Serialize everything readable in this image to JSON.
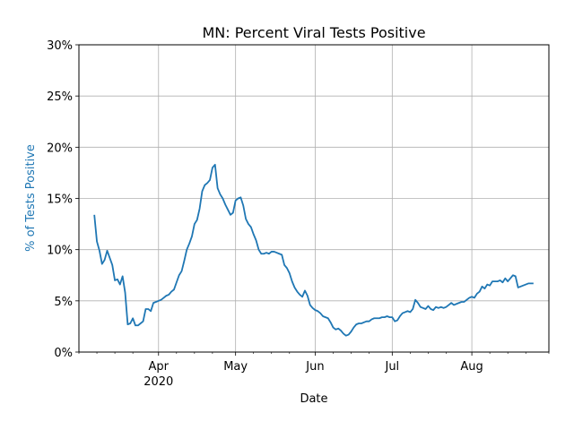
{
  "chart_data": {
    "type": "line",
    "title": "MN: Percent Viral Tests Positive",
    "xlabel": "Date",
    "ylabel": "% of Tests Positive",
    "ylim": [
      0,
      30
    ],
    "xlim": [
      "2020-03-01",
      "2020-08-31"
    ],
    "grid": true,
    "colors": {
      "line": "#1f77b4",
      "ylabel": "#1f77b4",
      "grid": "#b0b0b0"
    },
    "x_major_ticks": [
      {
        "date": "2020-04-01",
        "label": "Apr",
        "sublabel": "2020"
      },
      {
        "date": "2020-05-01",
        "label": "May",
        "sublabel": ""
      },
      {
        "date": "2020-06-01",
        "label": "Jun",
        "sublabel": ""
      },
      {
        "date": "2020-07-01",
        "label": "Jul",
        "sublabel": ""
      },
      {
        "date": "2020-08-01",
        "label": "Aug",
        "sublabel": ""
      }
    ],
    "x_minor_ticks": [
      "2020-03-01",
      "2020-03-08",
      "2020-03-15",
      "2020-03-22",
      "2020-04-08",
      "2020-04-15",
      "2020-04-22",
      "2020-05-08",
      "2020-05-15",
      "2020-05-22",
      "2020-06-08",
      "2020-06-15",
      "2020-06-22",
      "2020-07-08",
      "2020-07-15",
      "2020-07-22",
      "2020-08-08",
      "2020-08-15",
      "2020-08-22",
      "2020-08-31"
    ],
    "y_ticks": [
      {
        "value": 0,
        "label": "0%"
      },
      {
        "value": 5,
        "label": "5%"
      },
      {
        "value": 10,
        "label": "10%"
      },
      {
        "value": 15,
        "label": "15%"
      },
      {
        "value": 20,
        "label": "20%"
      },
      {
        "value": 25,
        "label": "25%"
      },
      {
        "value": 30,
        "label": "30%"
      }
    ],
    "series": [
      {
        "points": [
          [
            "2020-03-07",
            13.4
          ],
          [
            "2020-03-08",
            10.8
          ],
          [
            "2020-03-09",
            9.9
          ],
          [
            "2020-03-10",
            8.6
          ],
          [
            "2020-03-11",
            9.0
          ],
          [
            "2020-03-12",
            9.9
          ],
          [
            "2020-03-13",
            9.2
          ],
          [
            "2020-03-14",
            8.5
          ],
          [
            "2020-03-15",
            7.0
          ],
          [
            "2020-03-16",
            7.1
          ],
          [
            "2020-03-17",
            6.6
          ],
          [
            "2020-03-18",
            7.4
          ],
          [
            "2020-03-19",
            5.8
          ],
          [
            "2020-03-20",
            2.7
          ],
          [
            "2020-03-21",
            2.8
          ],
          [
            "2020-03-22",
            3.3
          ],
          [
            "2020-03-23",
            2.6
          ],
          [
            "2020-03-24",
            2.6
          ],
          [
            "2020-03-25",
            2.8
          ],
          [
            "2020-03-26",
            3.0
          ],
          [
            "2020-03-27",
            4.2
          ],
          [
            "2020-03-28",
            4.2
          ],
          [
            "2020-03-29",
            4.0
          ],
          [
            "2020-03-30",
            4.8
          ],
          [
            "2020-03-31",
            4.9
          ],
          [
            "2020-04-01",
            5.0
          ],
          [
            "2020-04-02",
            5.1
          ],
          [
            "2020-04-03",
            5.3
          ],
          [
            "2020-04-04",
            5.5
          ],
          [
            "2020-04-05",
            5.6
          ],
          [
            "2020-04-06",
            5.9
          ],
          [
            "2020-04-07",
            6.1
          ],
          [
            "2020-04-08",
            6.8
          ],
          [
            "2020-04-09",
            7.5
          ],
          [
            "2020-04-10",
            7.9
          ],
          [
            "2020-04-11",
            8.9
          ],
          [
            "2020-04-12",
            10.0
          ],
          [
            "2020-04-13",
            10.6
          ],
          [
            "2020-04-14",
            11.3
          ],
          [
            "2020-04-15",
            12.5
          ],
          [
            "2020-04-16",
            12.9
          ],
          [
            "2020-04-17",
            14.0
          ],
          [
            "2020-04-18",
            15.7
          ],
          [
            "2020-04-19",
            16.3
          ],
          [
            "2020-04-20",
            16.5
          ],
          [
            "2020-04-21",
            16.8
          ],
          [
            "2020-04-22",
            18.0
          ],
          [
            "2020-04-23",
            18.3
          ],
          [
            "2020-04-24",
            16.0
          ],
          [
            "2020-04-25",
            15.4
          ],
          [
            "2020-04-26",
            15.0
          ],
          [
            "2020-04-27",
            14.4
          ],
          [
            "2020-04-28",
            13.9
          ],
          [
            "2020-04-29",
            13.4
          ],
          [
            "2020-04-30",
            13.6
          ],
          [
            "2020-05-01",
            14.8
          ],
          [
            "2020-05-02",
            15.0
          ],
          [
            "2020-05-03",
            15.1
          ],
          [
            "2020-05-04",
            14.3
          ],
          [
            "2020-05-05",
            13.0
          ],
          [
            "2020-05-06",
            12.5
          ],
          [
            "2020-05-07",
            12.2
          ],
          [
            "2020-05-08",
            11.5
          ],
          [
            "2020-05-09",
            10.9
          ],
          [
            "2020-05-10",
            10.0
          ],
          [
            "2020-05-11",
            9.6
          ],
          [
            "2020-05-12",
            9.6
          ],
          [
            "2020-05-13",
            9.7
          ],
          [
            "2020-05-14",
            9.6
          ],
          [
            "2020-05-15",
            9.8
          ],
          [
            "2020-05-16",
            9.8
          ],
          [
            "2020-05-17",
            9.7
          ],
          [
            "2020-05-18",
            9.6
          ],
          [
            "2020-05-19",
            9.5
          ],
          [
            "2020-05-20",
            8.5
          ],
          [
            "2020-05-21",
            8.2
          ],
          [
            "2020-05-22",
            7.7
          ],
          [
            "2020-05-23",
            6.9
          ],
          [
            "2020-05-24",
            6.3
          ],
          [
            "2020-05-25",
            5.9
          ],
          [
            "2020-05-26",
            5.6
          ],
          [
            "2020-05-27",
            5.4
          ],
          [
            "2020-05-28",
            6.0
          ],
          [
            "2020-05-29",
            5.5
          ],
          [
            "2020-05-30",
            4.6
          ],
          [
            "2020-05-31",
            4.3
          ],
          [
            "2020-06-01",
            4.1
          ],
          [
            "2020-06-02",
            4.0
          ],
          [
            "2020-06-03",
            3.8
          ],
          [
            "2020-06-04",
            3.5
          ],
          [
            "2020-06-05",
            3.4
          ],
          [
            "2020-06-06",
            3.3
          ],
          [
            "2020-06-07",
            2.9
          ],
          [
            "2020-06-08",
            2.4
          ],
          [
            "2020-06-09",
            2.2
          ],
          [
            "2020-06-10",
            2.3
          ],
          [
            "2020-06-11",
            2.1
          ],
          [
            "2020-06-12",
            1.8
          ],
          [
            "2020-06-13",
            1.6
          ],
          [
            "2020-06-14",
            1.7
          ],
          [
            "2020-06-15",
            2.0
          ],
          [
            "2020-06-16",
            2.4
          ],
          [
            "2020-06-17",
            2.7
          ],
          [
            "2020-06-18",
            2.8
          ],
          [
            "2020-06-19",
            2.8
          ],
          [
            "2020-06-20",
            2.9
          ],
          [
            "2020-06-21",
            3.0
          ],
          [
            "2020-06-22",
            3.0
          ],
          [
            "2020-06-23",
            3.2
          ],
          [
            "2020-06-24",
            3.3
          ],
          [
            "2020-06-25",
            3.3
          ],
          [
            "2020-06-26",
            3.3
          ],
          [
            "2020-06-27",
            3.4
          ],
          [
            "2020-06-28",
            3.4
          ],
          [
            "2020-06-29",
            3.5
          ],
          [
            "2020-06-30",
            3.4
          ],
          [
            "2020-07-01",
            3.4
          ],
          [
            "2020-07-02",
            3.0
          ],
          [
            "2020-07-03",
            3.1
          ],
          [
            "2020-07-04",
            3.5
          ],
          [
            "2020-07-05",
            3.8
          ],
          [
            "2020-07-06",
            3.9
          ],
          [
            "2020-07-07",
            4.0
          ],
          [
            "2020-07-08",
            3.9
          ],
          [
            "2020-07-09",
            4.2
          ],
          [
            "2020-07-10",
            5.1
          ],
          [
            "2020-07-11",
            4.8
          ],
          [
            "2020-07-12",
            4.4
          ],
          [
            "2020-07-13",
            4.3
          ],
          [
            "2020-07-14",
            4.2
          ],
          [
            "2020-07-15",
            4.5
          ],
          [
            "2020-07-16",
            4.2
          ],
          [
            "2020-07-17",
            4.1
          ],
          [
            "2020-07-18",
            4.4
          ],
          [
            "2020-07-19",
            4.3
          ],
          [
            "2020-07-20",
            4.4
          ],
          [
            "2020-07-21",
            4.3
          ],
          [
            "2020-07-22",
            4.4
          ],
          [
            "2020-07-23",
            4.6
          ],
          [
            "2020-07-24",
            4.8
          ],
          [
            "2020-07-25",
            4.6
          ],
          [
            "2020-07-26",
            4.7
          ],
          [
            "2020-07-27",
            4.8
          ],
          [
            "2020-07-28",
            4.9
          ],
          [
            "2020-07-29",
            4.9
          ],
          [
            "2020-07-30",
            5.1
          ],
          [
            "2020-07-31",
            5.3
          ],
          [
            "2020-08-01",
            5.4
          ],
          [
            "2020-08-02",
            5.3
          ],
          [
            "2020-08-03",
            5.7
          ],
          [
            "2020-08-04",
            5.9
          ],
          [
            "2020-08-05",
            6.4
          ],
          [
            "2020-08-06",
            6.2
          ],
          [
            "2020-08-07",
            6.6
          ],
          [
            "2020-08-08",
            6.5
          ],
          [
            "2020-08-09",
            6.9
          ],
          [
            "2020-08-10",
            6.9
          ],
          [
            "2020-08-11",
            6.9
          ],
          [
            "2020-08-12",
            7.0
          ],
          [
            "2020-08-13",
            6.8
          ],
          [
            "2020-08-14",
            7.2
          ],
          [
            "2020-08-15",
            6.9
          ],
          [
            "2020-08-16",
            7.2
          ],
          [
            "2020-08-17",
            7.5
          ],
          [
            "2020-08-18",
            7.4
          ],
          [
            "2020-08-19",
            6.3
          ],
          [
            "2020-08-20",
            6.4
          ],
          [
            "2020-08-21",
            6.5
          ],
          [
            "2020-08-22",
            6.6
          ],
          [
            "2020-08-23",
            6.7
          ],
          [
            "2020-08-24",
            6.7
          ],
          [
            "2020-08-25",
            6.7
          ]
        ]
      }
    ]
  }
}
